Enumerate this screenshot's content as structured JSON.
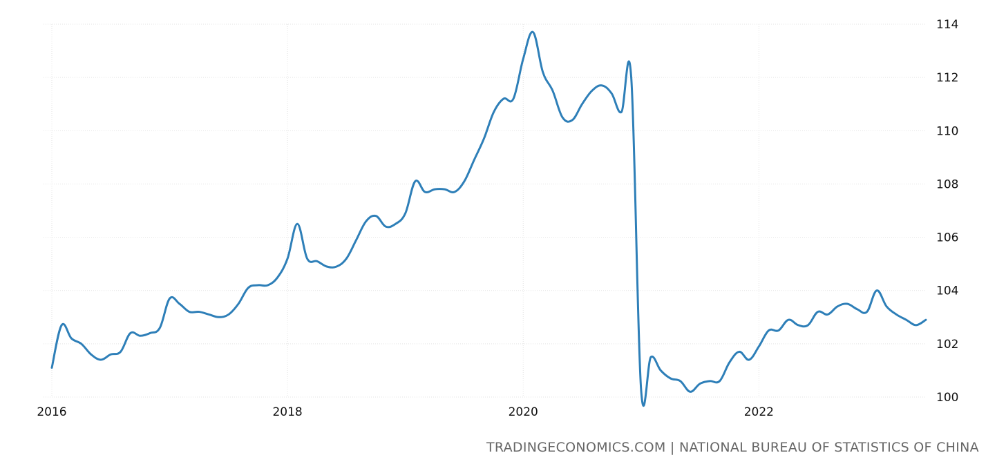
{
  "chart_data": {
    "type": "line",
    "title": "",
    "xlabel": "",
    "ylabel": "",
    "xlim": [
      "2016-01",
      "2023-06"
    ],
    "ylim": [
      100,
      114
    ],
    "grid": true,
    "legend": "none",
    "x_ticks": [
      "2016",
      "2018",
      "2020",
      "2022"
    ],
    "y_ticks": [
      "100",
      "102",
      "104",
      "106",
      "108",
      "110",
      "112",
      "114"
    ],
    "series": [
      {
        "color": "#2e7fb8",
        "points": [
          [
            "2016-01",
            101.1
          ],
          [
            "2016-02",
            102.7
          ],
          [
            "2016-03",
            102.2
          ],
          [
            "2016-04",
            102.0
          ],
          [
            "2016-05",
            101.6
          ],
          [
            "2016-06",
            101.4
          ],
          [
            "2016-07",
            101.6
          ],
          [
            "2016-08",
            101.7
          ],
          [
            "2016-09",
            102.4
          ],
          [
            "2016-10",
            102.3
          ],
          [
            "2016-11",
            102.4
          ],
          [
            "2016-12",
            102.6
          ],
          [
            "2017-01",
            103.7
          ],
          [
            "2017-02",
            103.5
          ],
          [
            "2017-03",
            103.2
          ],
          [
            "2017-04",
            103.2
          ],
          [
            "2017-05",
            103.1
          ],
          [
            "2017-06",
            103.0
          ],
          [
            "2017-07",
            103.1
          ],
          [
            "2017-08",
            103.5
          ],
          [
            "2017-09",
            104.1
          ],
          [
            "2017-10",
            104.2
          ],
          [
            "2017-11",
            104.2
          ],
          [
            "2017-12",
            104.5
          ],
          [
            "2018-01",
            105.2
          ],
          [
            "2018-02",
            106.5
          ],
          [
            "2018-03",
            105.2
          ],
          [
            "2018-04",
            105.1
          ],
          [
            "2018-05",
            104.9
          ],
          [
            "2018-06",
            104.9
          ],
          [
            "2018-07",
            105.2
          ],
          [
            "2018-08",
            105.9
          ],
          [
            "2018-09",
            106.6
          ],
          [
            "2018-10",
            106.8
          ],
          [
            "2018-11",
            106.4
          ],
          [
            "2018-12",
            106.5
          ],
          [
            "2019-01",
            106.9
          ],
          [
            "2019-02",
            108.1
          ],
          [
            "2019-03",
            107.7
          ],
          [
            "2019-04",
            107.8
          ],
          [
            "2019-05",
            107.8
          ],
          [
            "2019-06",
            107.7
          ],
          [
            "2019-07",
            108.1
          ],
          [
            "2019-08",
            108.9
          ],
          [
            "2019-09",
            109.7
          ],
          [
            "2019-10",
            110.7
          ],
          [
            "2019-11",
            111.2
          ],
          [
            "2019-12",
            111.2
          ],
          [
            "2020-01",
            112.7
          ],
          [
            "2020-02",
            113.7
          ],
          [
            "2020-03",
            112.2
          ],
          [
            "2020-04",
            111.5
          ],
          [
            "2020-05",
            110.5
          ],
          [
            "2020-06",
            110.4
          ],
          [
            "2020-07",
            111.0
          ],
          [
            "2020-08",
            111.5
          ],
          [
            "2020-09",
            111.7
          ],
          [
            "2020-10",
            111.4
          ],
          [
            "2020-11",
            110.7
          ],
          [
            "2020-12",
            112.0
          ],
          [
            "2021-01",
            100.3
          ],
          [
            "2021-02",
            101.5
          ],
          [
            "2021-03",
            101.0
          ],
          [
            "2021-04",
            100.7
          ],
          [
            "2021-05",
            100.6
          ],
          [
            "2021-06",
            100.2
          ],
          [
            "2021-07",
            100.5
          ],
          [
            "2021-08",
            100.6
          ],
          [
            "2021-09",
            100.6
          ],
          [
            "2021-10",
            101.3
          ],
          [
            "2021-11",
            101.7
          ],
          [
            "2021-12",
            101.4
          ],
          [
            "2022-01",
            101.9
          ],
          [
            "2022-02",
            102.5
          ],
          [
            "2022-03",
            102.5
          ],
          [
            "2022-04",
            102.9
          ],
          [
            "2022-05",
            102.7
          ],
          [
            "2022-06",
            102.7
          ],
          [
            "2022-07",
            103.2
          ],
          [
            "2022-08",
            103.1
          ],
          [
            "2022-09",
            103.4
          ],
          [
            "2022-10",
            103.5
          ],
          [
            "2022-11",
            103.3
          ],
          [
            "2022-12",
            103.2
          ],
          [
            "2023-01",
            104.0
          ],
          [
            "2023-02",
            103.4
          ],
          [
            "2023-03",
            103.1
          ],
          [
            "2023-04",
            102.9
          ],
          [
            "2023-05",
            102.7
          ],
          [
            "2023-06",
            102.9
          ]
        ]
      }
    ]
  },
  "source": "TRADINGECONOMICS.COM | NATIONAL BUREAU OF STATISTICS OF CHINA"
}
